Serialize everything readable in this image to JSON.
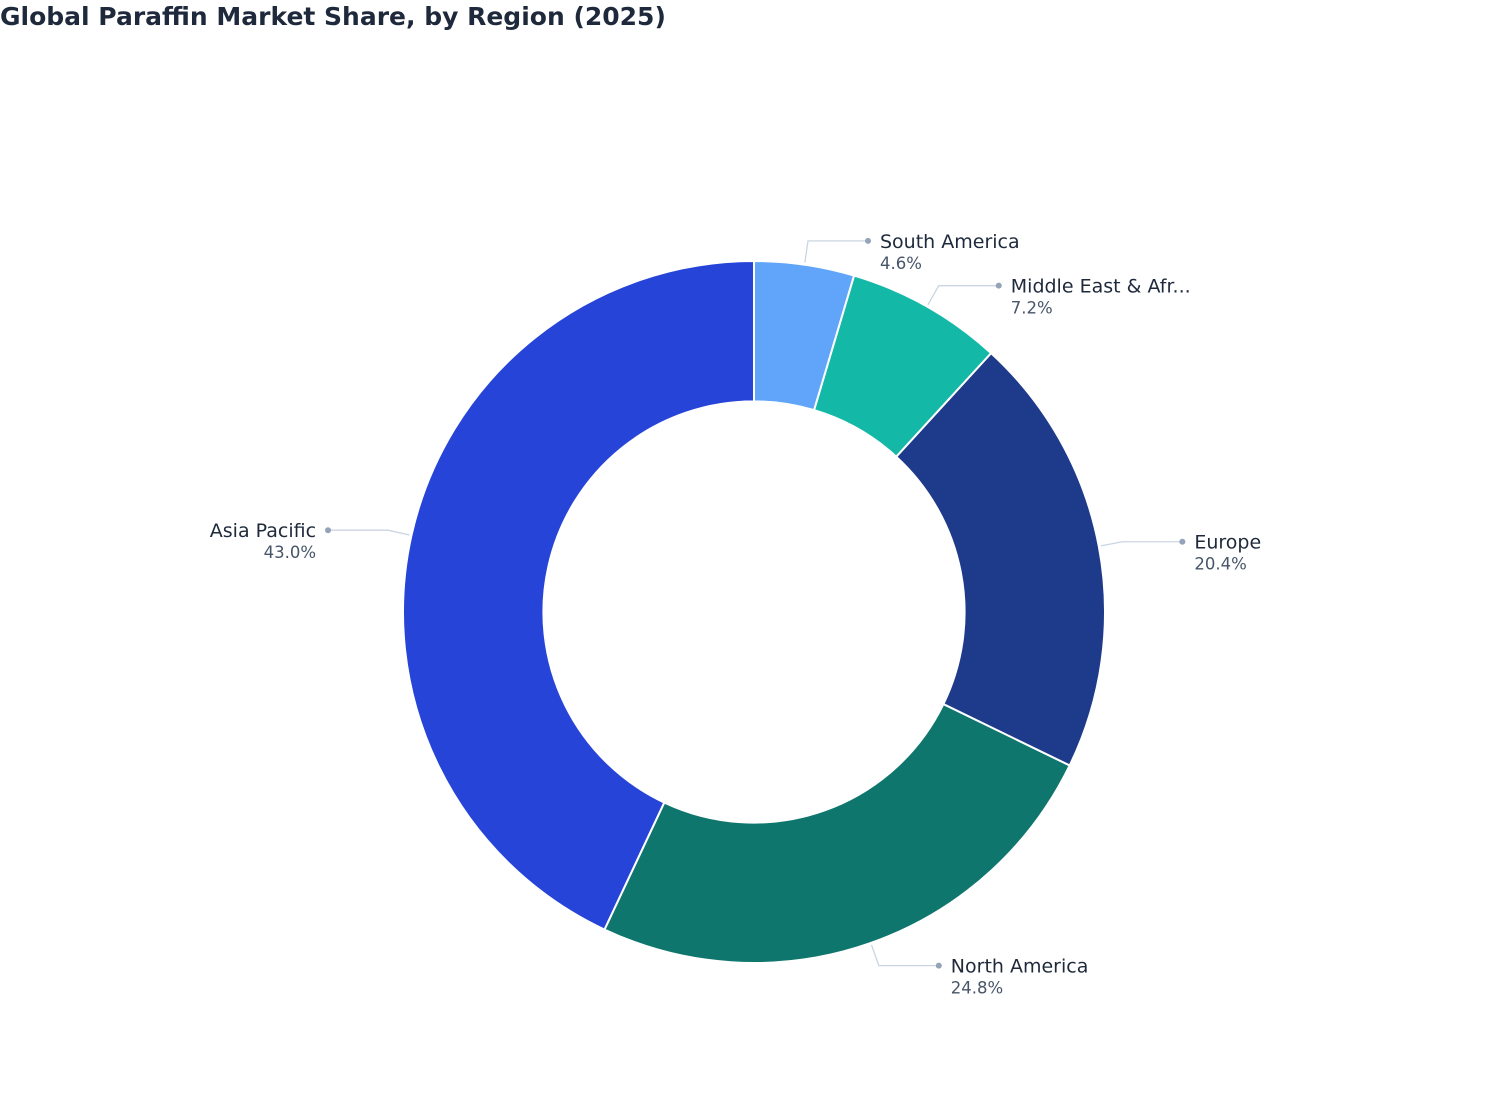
{
  "chart_data": {
    "type": "pie",
    "title": "Global Paraffin Market Share, by Region (2025)",
    "hole": 0.6,
    "start_angle_deg": 90,
    "direction": "counterclockwise",
    "slices": [
      {
        "label": "Asia Pacific",
        "display_label": "Asia Pacific",
        "value": 43.0,
        "value_label": "43.0%",
        "color": "#2744d8"
      },
      {
        "label": "North America",
        "display_label": "North America",
        "value": 24.8,
        "value_label": "24.8%",
        "color": "#0f766e"
      },
      {
        "label": "Europe",
        "display_label": "Europe",
        "value": 20.4,
        "value_label": "20.4%",
        "color": "#1e3a8a"
      },
      {
        "label": "Middle East & Africa",
        "display_label": "Middle East & Afr...",
        "value": 7.2,
        "value_label": "7.2%",
        "color": "#14b8a6"
      },
      {
        "label": "South America",
        "display_label": "South America",
        "value": 4.6,
        "value_label": "4.6%",
        "color": "#60a5fa"
      }
    ],
    "legend": "none",
    "label_position": "outside"
  },
  "colors": {
    "title": "#1e293b",
    "label_name": "#1e293b",
    "label_value": "#475569",
    "leader_line": "#cbd5e1",
    "leader_dot": "#94a3b8",
    "slice_border": "#ffffff"
  }
}
